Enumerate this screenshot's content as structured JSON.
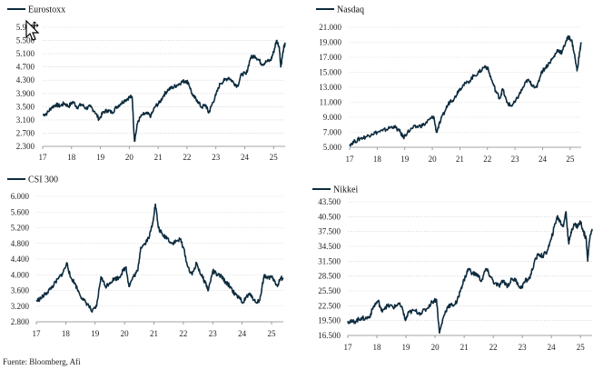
{
  "source_note": "Fuente: Bloomberg, Afi",
  "line_color": "#0d2b3e",
  "chart_data": [
    {
      "type": "line",
      "title": "Eurostoxx",
      "series": [
        {
          "name": "Eurostoxx",
          "values": [
            [
              17.0,
              3250
            ],
            [
              17.15,
              3300
            ],
            [
              17.3,
              3470
            ],
            [
              17.45,
              3560
            ],
            [
              17.6,
              3520
            ],
            [
              17.75,
              3600
            ],
            [
              17.9,
              3510
            ],
            [
              18.05,
              3650
            ],
            [
              18.2,
              3480
            ],
            [
              18.35,
              3570
            ],
            [
              18.5,
              3450
            ],
            [
              18.65,
              3500
            ],
            [
              18.8,
              3360
            ],
            [
              18.95,
              3120
            ],
            [
              19.1,
              3330
            ],
            [
              19.25,
              3390
            ],
            [
              19.4,
              3320
            ],
            [
              19.55,
              3480
            ],
            [
              19.7,
              3590
            ],
            [
              19.85,
              3700
            ],
            [
              20.0,
              3780
            ],
            [
              20.1,
              3800
            ],
            [
              20.18,
              2450
            ],
            [
              20.3,
              3060
            ],
            [
              20.45,
              3250
            ],
            [
              20.6,
              3290
            ],
            [
              20.75,
              3220
            ],
            [
              20.9,
              3510
            ],
            [
              21.05,
              3620
            ],
            [
              21.2,
              3860
            ],
            [
              21.35,
              4020
            ],
            [
              21.5,
              4080
            ],
            [
              21.65,
              4150
            ],
            [
              21.8,
              4240
            ],
            [
              21.95,
              4280
            ],
            [
              22.05,
              4230
            ],
            [
              22.2,
              3820
            ],
            [
              22.35,
              3700
            ],
            [
              22.5,
              3480
            ],
            [
              22.65,
              3550
            ],
            [
              22.75,
              3310
            ],
            [
              22.85,
              3530
            ],
            [
              23.0,
              3850
            ],
            [
              23.15,
              4200
            ],
            [
              23.3,
              4300
            ],
            [
              23.45,
              4380
            ],
            [
              23.6,
              4240
            ],
            [
              23.75,
              4120
            ],
            [
              23.9,
              4500
            ],
            [
              24.05,
              4480
            ],
            [
              24.2,
              4980
            ],
            [
              24.35,
              5040
            ],
            [
              24.5,
              4900
            ],
            [
              24.6,
              4780
            ],
            [
              24.75,
              4860
            ],
            [
              24.9,
              4900
            ],
            [
              25.0,
              5150
            ],
            [
              25.1,
              5500
            ],
            [
              25.2,
              5300
            ],
            [
              25.25,
              4700
            ],
            [
              25.35,
              5280
            ],
            [
              25.4,
              5380
            ]
          ]
        }
      ],
      "x_ticks": [
        "17",
        "18",
        "19",
        "20",
        "21",
        "22",
        "23",
        "24",
        "25"
      ],
      "y_ticks": [
        "2.300",
        "2.700",
        "3.100",
        "3.500",
        "3.900",
        "4.300",
        "4.700",
        "5.100",
        "5.500",
        "5.900"
      ],
      "xlim": [
        17,
        25.4
      ],
      "ylim": [
        2300,
        5900
      ]
    },
    {
      "type": "line",
      "title": "Nasdaq",
      "series": [
        {
          "name": "Nasdaq",
          "values": [
            [
              17.0,
              5400
            ],
            [
              17.2,
              5800
            ],
            [
              17.4,
              6200
            ],
            [
              17.6,
              6400
            ],
            [
              17.8,
              6800
            ],
            [
              18.0,
              7000
            ],
            [
              18.2,
              7200
            ],
            [
              18.4,
              7500
            ],
            [
              18.6,
              7800
            ],
            [
              18.8,
              7200
            ],
            [
              18.95,
              6300
            ],
            [
              19.1,
              7000
            ],
            [
              19.3,
              7600
            ],
            [
              19.5,
              7800
            ],
            [
              19.7,
              8000
            ],
            [
              19.9,
              8700
            ],
            [
              20.05,
              9100
            ],
            [
              20.15,
              7000
            ],
            [
              20.3,
              8500
            ],
            [
              20.5,
              10200
            ],
            [
              20.65,
              11200
            ],
            [
              20.8,
              11500
            ],
            [
              20.95,
              12600
            ],
            [
              21.1,
              13200
            ],
            [
              21.3,
              13700
            ],
            [
              21.5,
              14500
            ],
            [
              21.7,
              15000
            ],
            [
              21.9,
              15800
            ],
            [
              22.0,
              15600
            ],
            [
              22.15,
              14000
            ],
            [
              22.3,
              12500
            ],
            [
              22.45,
              11500
            ],
            [
              22.55,
              12800
            ],
            [
              22.7,
              11000
            ],
            [
              22.85,
              10500
            ],
            [
              23.0,
              11000
            ],
            [
              23.15,
              12000
            ],
            [
              23.3,
              13000
            ],
            [
              23.45,
              14000
            ],
            [
              23.6,
              13400
            ],
            [
              23.8,
              13000
            ],
            [
              23.95,
              15000
            ],
            [
              24.1,
              15600
            ],
            [
              24.25,
              16300
            ],
            [
              24.4,
              17000
            ],
            [
              24.55,
              18000
            ],
            [
              24.7,
              17600
            ],
            [
              24.85,
              19200
            ],
            [
              24.95,
              19700
            ],
            [
              25.05,
              19300
            ],
            [
              25.15,
              17500
            ],
            [
              25.25,
              15200
            ],
            [
              25.35,
              17800
            ],
            [
              25.4,
              19000
            ]
          ]
        }
      ],
      "x_ticks": [
        "17",
        "18",
        "19",
        "20",
        "21",
        "22",
        "23",
        "24",
        "25"
      ],
      "y_ticks": [
        "5.000",
        "7.000",
        "9.000",
        "11.000",
        "13.000",
        "15.000",
        "17.000",
        "19.000",
        "21.000"
      ],
      "xlim": [
        17,
        25.4
      ],
      "ylim": [
        5000,
        21000
      ]
    },
    {
      "type": "line",
      "title": "CSI 300",
      "series": [
        {
          "name": "CSI 300",
          "values": [
            [
              17.0,
              3330
            ],
            [
              17.15,
              3400
            ],
            [
              17.3,
              3500
            ],
            [
              17.45,
              3620
            ],
            [
              17.6,
              3750
            ],
            [
              17.75,
              3900
            ],
            [
              17.9,
              4050
            ],
            [
              18.05,
              4300
            ],
            [
              18.15,
              3950
            ],
            [
              18.3,
              3800
            ],
            [
              18.45,
              3550
            ],
            [
              18.6,
              3350
            ],
            [
              18.75,
              3250
            ],
            [
              18.9,
              3050
            ],
            [
              19.05,
              3200
            ],
            [
              19.2,
              3950
            ],
            [
              19.35,
              3700
            ],
            [
              19.5,
              3800
            ],
            [
              19.65,
              3900
            ],
            [
              19.8,
              3920
            ],
            [
              19.95,
              4100
            ],
            [
              20.05,
              4200
            ],
            [
              20.15,
              3700
            ],
            [
              20.3,
              3950
            ],
            [
              20.45,
              4100
            ],
            [
              20.55,
              4700
            ],
            [
              20.7,
              4800
            ],
            [
              20.85,
              5000
            ],
            [
              20.95,
              5300
            ],
            [
              21.05,
              5800
            ],
            [
              21.15,
              5200
            ],
            [
              21.3,
              5000
            ],
            [
              21.45,
              4950
            ],
            [
              21.6,
              4800
            ],
            [
              21.75,
              4850
            ],
            [
              21.9,
              4900
            ],
            [
              22.0,
              4700
            ],
            [
              22.15,
              4200
            ],
            [
              22.3,
              4000
            ],
            [
              22.45,
              4300
            ],
            [
              22.6,
              4000
            ],
            [
              22.75,
              3800
            ],
            [
              22.85,
              3600
            ],
            [
              23.0,
              4100
            ],
            [
              23.15,
              4000
            ],
            [
              23.3,
              3950
            ],
            [
              23.45,
              3800
            ],
            [
              23.6,
              3700
            ],
            [
              23.75,
              3500
            ],
            [
              23.9,
              3400
            ],
            [
              24.05,
              3300
            ],
            [
              24.15,
              3450
            ],
            [
              24.3,
              3500
            ],
            [
              24.45,
              3300
            ],
            [
              24.6,
              3350
            ],
            [
              24.75,
              4000
            ],
            [
              24.85,
              3900
            ],
            [
              25.0,
              3950
            ],
            [
              25.1,
              3850
            ],
            [
              25.2,
              3700
            ],
            [
              25.3,
              3900
            ],
            [
              25.4,
              3920
            ]
          ]
        }
      ],
      "x_ticks": [
        "17",
        "18",
        "19",
        "20",
        "21",
        "22",
        "23",
        "24",
        "25"
      ],
      "y_ticks": [
        "2.800",
        "3.200",
        "3.600",
        "4.000",
        "4.400",
        "4.800",
        "5.200",
        "5.600",
        "6.000"
      ],
      "xlim": [
        17,
        25.4
      ],
      "ylim": [
        2800,
        6000
      ]
    },
    {
      "type": "line",
      "title": "Nikkei",
      "series": [
        {
          "name": "Nikkei",
          "values": [
            [
              17.0,
              19400
            ],
            [
              17.15,
              19200
            ],
            [
              17.3,
              19500
            ],
            [
              17.45,
              20000
            ],
            [
              17.6,
              19900
            ],
            [
              17.75,
              20300
            ],
            [
              17.9,
              22500
            ],
            [
              18.05,
              23500
            ],
            [
              18.15,
              21500
            ],
            [
              18.3,
              22300
            ],
            [
              18.45,
              22500
            ],
            [
              18.6,
              22200
            ],
            [
              18.75,
              23000
            ],
            [
              18.9,
              21500
            ],
            [
              18.98,
              19500
            ],
            [
              19.1,
              21200
            ],
            [
              19.3,
              21500
            ],
            [
              19.5,
              21000
            ],
            [
              19.7,
              21800
            ],
            [
              19.9,
              23300
            ],
            [
              20.05,
              23800
            ],
            [
              20.15,
              17000
            ],
            [
              20.3,
              20500
            ],
            [
              20.45,
              22500
            ],
            [
              20.6,
              22600
            ],
            [
              20.75,
              23200
            ],
            [
              20.9,
              26200
            ],
            [
              21.05,
              28500
            ],
            [
              21.15,
              30000
            ],
            [
              21.3,
              29000
            ],
            [
              21.45,
              28800
            ],
            [
              21.6,
              27500
            ],
            [
              21.75,
              30000
            ],
            [
              21.9,
              28500
            ],
            [
              22.05,
              27000
            ],
            [
              22.2,
              26500
            ],
            [
              22.35,
              27500
            ],
            [
              22.5,
              26500
            ],
            [
              22.65,
              28000
            ],
            [
              22.8,
              27500
            ],
            [
              22.95,
              26000
            ],
            [
              23.1,
              27500
            ],
            [
              23.25,
              28000
            ],
            [
              23.4,
              31000
            ],
            [
              23.55,
              33000
            ],
            [
              23.7,
              32500
            ],
            [
              23.85,
              33500
            ],
            [
              24.0,
              36000
            ],
            [
              24.1,
              38500
            ],
            [
              24.2,
              40500
            ],
            [
              24.3,
              39500
            ],
            [
              24.4,
              38500
            ],
            [
              24.5,
              41500
            ],
            [
              24.55,
              38000
            ],
            [
              24.6,
              35000
            ],
            [
              24.7,
              38000
            ],
            [
              24.8,
              39000
            ],
            [
              24.9,
              38500
            ],
            [
              25.0,
              39500
            ],
            [
              25.1,
              37500
            ],
            [
              25.2,
              36000
            ],
            [
              25.25,
              31500
            ],
            [
              25.3,
              35500
            ],
            [
              25.4,
              38000
            ]
          ]
        }
      ],
      "x_ticks": [
        "17",
        "18",
        "19",
        "20",
        "21",
        "22",
        "23",
        "24",
        "25"
      ],
      "y_ticks": [
        "16.500",
        "19.500",
        "22.500",
        "25.500",
        "28.500",
        "31.500",
        "34.500",
        "37.500",
        "40.500",
        "43.500"
      ],
      "xlim": [
        17,
        25.4
      ],
      "ylim": [
        16500,
        43500
      ]
    }
  ]
}
